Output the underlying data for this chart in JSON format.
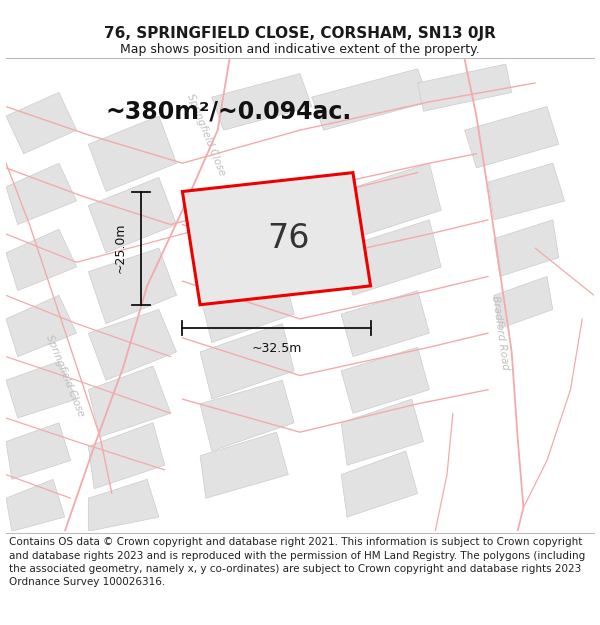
{
  "title": "76, SPRINGFIELD CLOSE, CORSHAM, SN13 0JR",
  "subtitle": "Map shows position and indicative extent of the property.",
  "footer": "Contains OS data © Crown copyright and database right 2021. This information is subject to Crown copyright and database rights 2023 and is reproduced with the permission of HM Land Registry. The polygons (including the associated geometry, namely x, y co-ordinates) are subject to Crown copyright and database rights 2023 Ordnance Survey 100026316.",
  "area_label": "~380m²/~0.094ac.",
  "number_label": "76",
  "dim_width": "~32.5m",
  "dim_height": "~25.0m",
  "road_label_springfield_upper": "Springfield Close",
  "road_label_springfield_lower": "Springfield Close",
  "road_label_bradford": "Bradford Road",
  "bg_color": "#ffffff",
  "block_color": "#e2e2e2",
  "block_edge_color": "#cccccc",
  "road_line_color": "#f4aaaa",
  "plot_outline_color": "#ee0000",
  "plot_fill_color": "#e8e8e8",
  "dim_line_color": "#111111",
  "road_label_color": "#c0c0c0",
  "title_fontsize": 11,
  "subtitle_fontsize": 9,
  "footer_fontsize": 7.5,
  "area_fontsize": 17,
  "number_fontsize": 24,
  "road_fontsize": 7.5,
  "dim_fontsize": 9
}
